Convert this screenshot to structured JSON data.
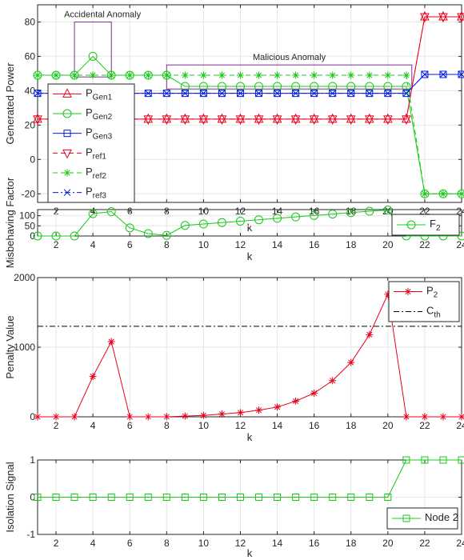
{
  "chart_data": [
    {
      "type": "line",
      "title": "",
      "xlabel": "k",
      "ylabel": "Generated Power",
      "xlim": [
        1,
        24
      ],
      "ylim": [
        -25,
        90
      ],
      "xticks": [
        2,
        4,
        6,
        8,
        10,
        12,
        14,
        16,
        18,
        20,
        22,
        24
      ],
      "yticks": [
        -20,
        0,
        20,
        40,
        60,
        80
      ],
      "grid": true,
      "legend_position": "left",
      "annotations": [
        {
          "text": "Accidental Anomaly",
          "box": {
            "x": [
              3,
              5
            ],
            "y": [
              48,
              80
            ]
          }
        },
        {
          "text": "Malicious Anomaly",
          "box": {
            "x": [
              8,
              21.3
            ],
            "y": [
              41,
              55
            ]
          }
        }
      ],
      "x": [
        1,
        2,
        3,
        4,
        5,
        6,
        7,
        8,
        9,
        10,
        11,
        12,
        13,
        14,
        15,
        16,
        17,
        18,
        19,
        20,
        21,
        22,
        23,
        24
      ],
      "series": [
        {
          "name": "P",
          "sub": "Gen1",
          "color": "#e8001c",
          "marker": "triangle-up",
          "dash": "solid",
          "values": [
            23.5,
            23.5,
            23.5,
            23.5,
            23.5,
            23.5,
            23.5,
            23.5,
            23.5,
            23.5,
            23.5,
            23.5,
            23.5,
            23.5,
            23.5,
            23.5,
            23.5,
            23.5,
            23.5,
            23.5,
            23.5,
            83,
            83,
            83
          ]
        },
        {
          "name": "P",
          "sub": "Gen2",
          "color": "#18c818",
          "marker": "circle",
          "dash": "solid",
          "values": [
            49,
            49,
            49,
            60,
            49,
            49,
            49,
            49,
            42.5,
            42.5,
            42.5,
            42.5,
            42.5,
            42.5,
            42.5,
            42.5,
            42.5,
            42.5,
            42.5,
            42.5,
            42.5,
            -20,
            -20,
            -20
          ]
        },
        {
          "name": "P",
          "sub": "Gen3",
          "color": "#0018e0",
          "marker": "square",
          "dash": "solid",
          "values": [
            38.5,
            38.5,
            38.5,
            38.5,
            38.5,
            38.5,
            38.5,
            38.5,
            38.5,
            38.5,
            38.5,
            38.5,
            38.5,
            38.5,
            38.5,
            38.5,
            38.5,
            38.5,
            38.5,
            38.5,
            38.5,
            49.5,
            49.5,
            49.5
          ]
        },
        {
          "name": "P",
          "sub": "ref1",
          "color": "#e8001c",
          "marker": "triangle-down",
          "dash": "dashed",
          "values": [
            23.5,
            23.5,
            23.5,
            23.5,
            23.5,
            23.5,
            23.5,
            23.5,
            23.5,
            23.5,
            23.5,
            23.5,
            23.5,
            23.5,
            23.5,
            23.5,
            23.5,
            23.5,
            23.5,
            23.5,
            23.5,
            83,
            83,
            83
          ]
        },
        {
          "name": "P",
          "sub": "ref2",
          "color": "#18c818",
          "marker": "asterisk",
          "dash": "dashed",
          "values": [
            49,
            49,
            49,
            49,
            49,
            49,
            49,
            49,
            49,
            49,
            49,
            49,
            49,
            49,
            49,
            49,
            49,
            49,
            49,
            49,
            49,
            -20,
            -20,
            -20
          ]
        },
        {
          "name": "P",
          "sub": "ref3",
          "color": "#0018e0",
          "marker": "x",
          "dash": "dashdot",
          "values": [
            38.5,
            38.5,
            38.5,
            38.5,
            38.5,
            38.5,
            38.5,
            38.5,
            38.5,
            38.5,
            38.5,
            38.5,
            38.5,
            38.5,
            38.5,
            38.5,
            38.5,
            38.5,
            38.5,
            38.5,
            38.5,
            49.5,
            49.5,
            49.5
          ]
        }
      ]
    },
    {
      "type": "line",
      "title": "",
      "xlabel": "k",
      "ylabel": "Misbehaving Factor",
      "xlim": [
        1,
        24
      ],
      "ylim": [
        0,
        130
      ],
      "xticks": [
        2,
        4,
        6,
        8,
        10,
        12,
        14,
        16,
        18,
        20,
        22,
        24
      ],
      "yticks": [
        0,
        50,
        100
      ],
      "grid": true,
      "legend_position": "top-right",
      "x": [
        1,
        2,
        3,
        4,
        5,
        6,
        7,
        8,
        9,
        10,
        11,
        12,
        13,
        14,
        15,
        16,
        17,
        18,
        19,
        20,
        21,
        22,
        23,
        24
      ],
      "series": [
        {
          "name": "F",
          "sub": "2",
          "color": "#18c818",
          "marker": "circle",
          "dash": "solid",
          "values": [
            0,
            0,
            0,
            110,
            120,
            40,
            12,
            3,
            52,
            59,
            66,
            73,
            80,
            87,
            94,
            101,
            108,
            115,
            122,
            128,
            0,
            0,
            0,
            0
          ]
        }
      ]
    },
    {
      "type": "line",
      "title": "",
      "xlabel": "k",
      "ylabel": "Penalty Value",
      "xlim": [
        1,
        24
      ],
      "ylim": [
        0,
        2000
      ],
      "xticks": [
        2,
        4,
        6,
        8,
        10,
        12,
        14,
        16,
        18,
        20,
        22,
        24
      ],
      "yticks": [
        0,
        1000,
        2000
      ],
      "grid": true,
      "legend_position": "top-right",
      "threshold": {
        "name": "C",
        "sub": "th",
        "value": 1300,
        "color": "#000000",
        "dash": "dashdot"
      },
      "x": [
        1,
        2,
        3,
        4,
        5,
        6,
        7,
        8,
        9,
        10,
        11,
        12,
        13,
        14,
        15,
        16,
        17,
        18,
        19,
        20,
        21,
        22,
        23,
        24
      ],
      "series": [
        {
          "name": "P",
          "sub": "2",
          "color": "#e8001c",
          "marker": "asterisk",
          "dash": "solid",
          "values": [
            0,
            0,
            0,
            580,
            1080,
            0,
            0,
            0,
            10,
            20,
            40,
            60,
            95,
            140,
            225,
            340,
            520,
            780,
            1180,
            1760,
            0,
            0,
            0,
            0
          ]
        }
      ]
    },
    {
      "type": "line",
      "title": "",
      "xlabel": "k",
      "ylabel": "Isolation Signal",
      "xlim": [
        1,
        24
      ],
      "ylim": [
        -1,
        1
      ],
      "xticks": [
        2,
        4,
        6,
        8,
        10,
        12,
        14,
        16,
        18,
        20,
        22,
        24
      ],
      "yticks": [
        -1,
        0,
        1
      ],
      "grid": true,
      "legend_position": "bottom-right",
      "x": [
        1,
        2,
        3,
        4,
        5,
        6,
        7,
        8,
        9,
        10,
        11,
        12,
        13,
        14,
        15,
        16,
        17,
        18,
        19,
        20,
        21,
        22,
        23,
        24
      ],
      "series": [
        {
          "name": "Node 2",
          "sub": "",
          "color": "#18c818",
          "marker": "square",
          "dash": "solid",
          "values": [
            0,
            0,
            0,
            0,
            0,
            0,
            0,
            0,
            0,
            0,
            0,
            0,
            0,
            0,
            0,
            0,
            0,
            0,
            0,
            0,
            1,
            1,
            1,
            1
          ]
        }
      ]
    }
  ]
}
